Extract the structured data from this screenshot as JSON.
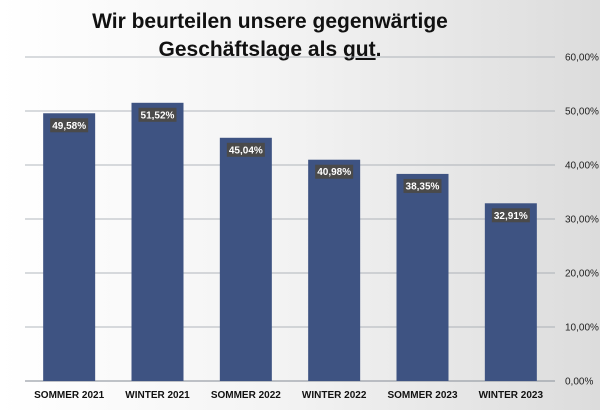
{
  "title": {
    "line1": "Wir beurteilen unsere gegenwärtige",
    "line2_prefix": "Geschäftslage als ",
    "line2_emph": "gut",
    "line2_suffix": "."
  },
  "colors": {
    "bar": "#3e5382",
    "label_bg": "#4a4a4a",
    "grid": "#9aa0a8"
  },
  "chart_data": {
    "type": "bar",
    "categories": [
      "SOMMER 2021",
      "WINTER 2021",
      "SOMMER 2022",
      "WINTER 2022",
      "SOMMER 2023",
      "WINTER 2023"
    ],
    "values": [
      49.58,
      51.52,
      45.04,
      40.98,
      38.35,
      32.91
    ],
    "value_labels": [
      "49,58%",
      "51,52%",
      "45,04%",
      "40,98%",
      "38,35%",
      "32,91%"
    ],
    "ylim": [
      0,
      60
    ],
    "yticks": [
      0,
      10,
      20,
      30,
      40,
      50,
      60
    ],
    "ytick_labels": [
      "0,00%",
      "10,00%",
      "20,00%",
      "30,00%",
      "40,00%",
      "50,00%",
      "60,00%"
    ],
    "y_axis_side": "right",
    "grid": true,
    "title": "Wir beurteilen unsere gegenwärtige Geschäftslage als gut.",
    "xlabel": "",
    "ylabel": ""
  }
}
